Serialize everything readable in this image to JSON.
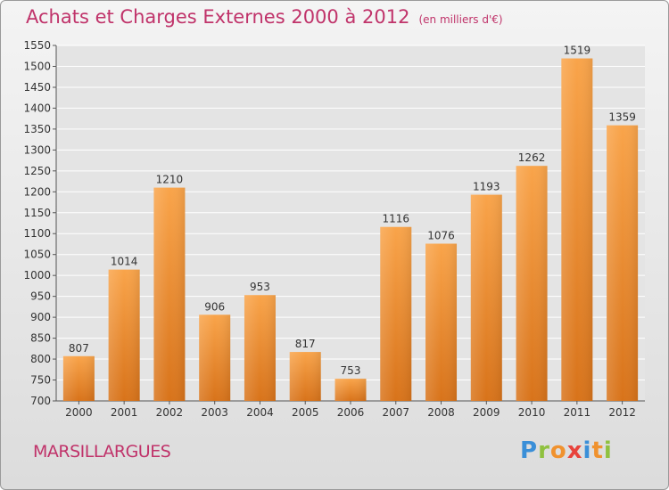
{
  "chart_data": {
    "type": "bar",
    "title": "Achats et Charges Externes 2000 à 2012",
    "unit_label": "(en milliers d'€)",
    "categories": [
      "2000",
      "2001",
      "2002",
      "2003",
      "2004",
      "2005",
      "2006",
      "2007",
      "2008",
      "2009",
      "2010",
      "2011",
      "2012"
    ],
    "values": [
      807,
      1014,
      1210,
      906,
      953,
      817,
      753,
      1116,
      1076,
      1193,
      1262,
      1519,
      1359
    ],
    "ylim": [
      700,
      1550
    ],
    "yticks": [
      700,
      750,
      800,
      850,
      900,
      950,
      1000,
      1050,
      1100,
      1150,
      1200,
      1250,
      1300,
      1350,
      1400,
      1450,
      1500,
      1550
    ],
    "grid": true,
    "xlabel": "",
    "ylabel": "",
    "bar_color": "#f0922e"
  },
  "footer": {
    "city": "MARSILLARGUES",
    "logo_letters": [
      "P",
      "r",
      "o",
      "x",
      "i",
      "t",
      "i"
    ],
    "logo_colors": [
      "#3a8fd8",
      "#8fc13f",
      "#f0922e",
      "#e8433c",
      "#3a8fd8",
      "#f0922e",
      "#8fc13f"
    ]
  },
  "colors": {
    "title": "#c0336a",
    "grid": "#ffffff",
    "axis": "#555555"
  }
}
